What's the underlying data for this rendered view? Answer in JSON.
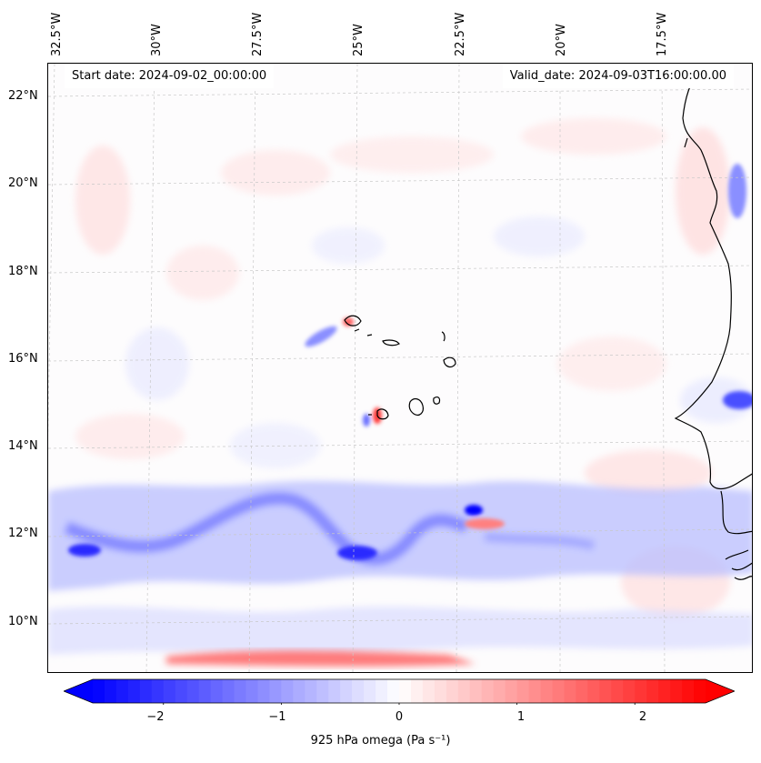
{
  "map": {
    "start_date": "Start date: 2024-09-02_00:00:00",
    "valid_date": "Valid_date: 2024-09-03T16:00:00.00",
    "lon_labels": [
      "32.5°W",
      "30°W",
      "27.5°W",
      "25°W",
      "22.5°W",
      "20°W",
      "17.5°W"
    ],
    "lat_labels": [
      "22°N",
      "20°N",
      "18°N",
      "16°N",
      "14°N",
      "12°N",
      "10°N"
    ],
    "colors": {
      "ocean": "#fdfcfd",
      "upward_strong": "#0000ff",
      "upward_weak": "#c8ccff",
      "downward_strong": "#ff0000",
      "downward_weak": "#ffd0d0",
      "coastline": "#000000",
      "grid": "#c8c8c8"
    }
  },
  "colorbar": {
    "label": "925 hPa omega (Pa s⁻¹)",
    "ticks": [
      "−2",
      "−1",
      "0",
      "1",
      "2"
    ],
    "tick_values": [
      -2,
      -1,
      0,
      1,
      2
    ],
    "range": [
      -2.6,
      2.6
    ],
    "colormap": "bwr"
  }
}
